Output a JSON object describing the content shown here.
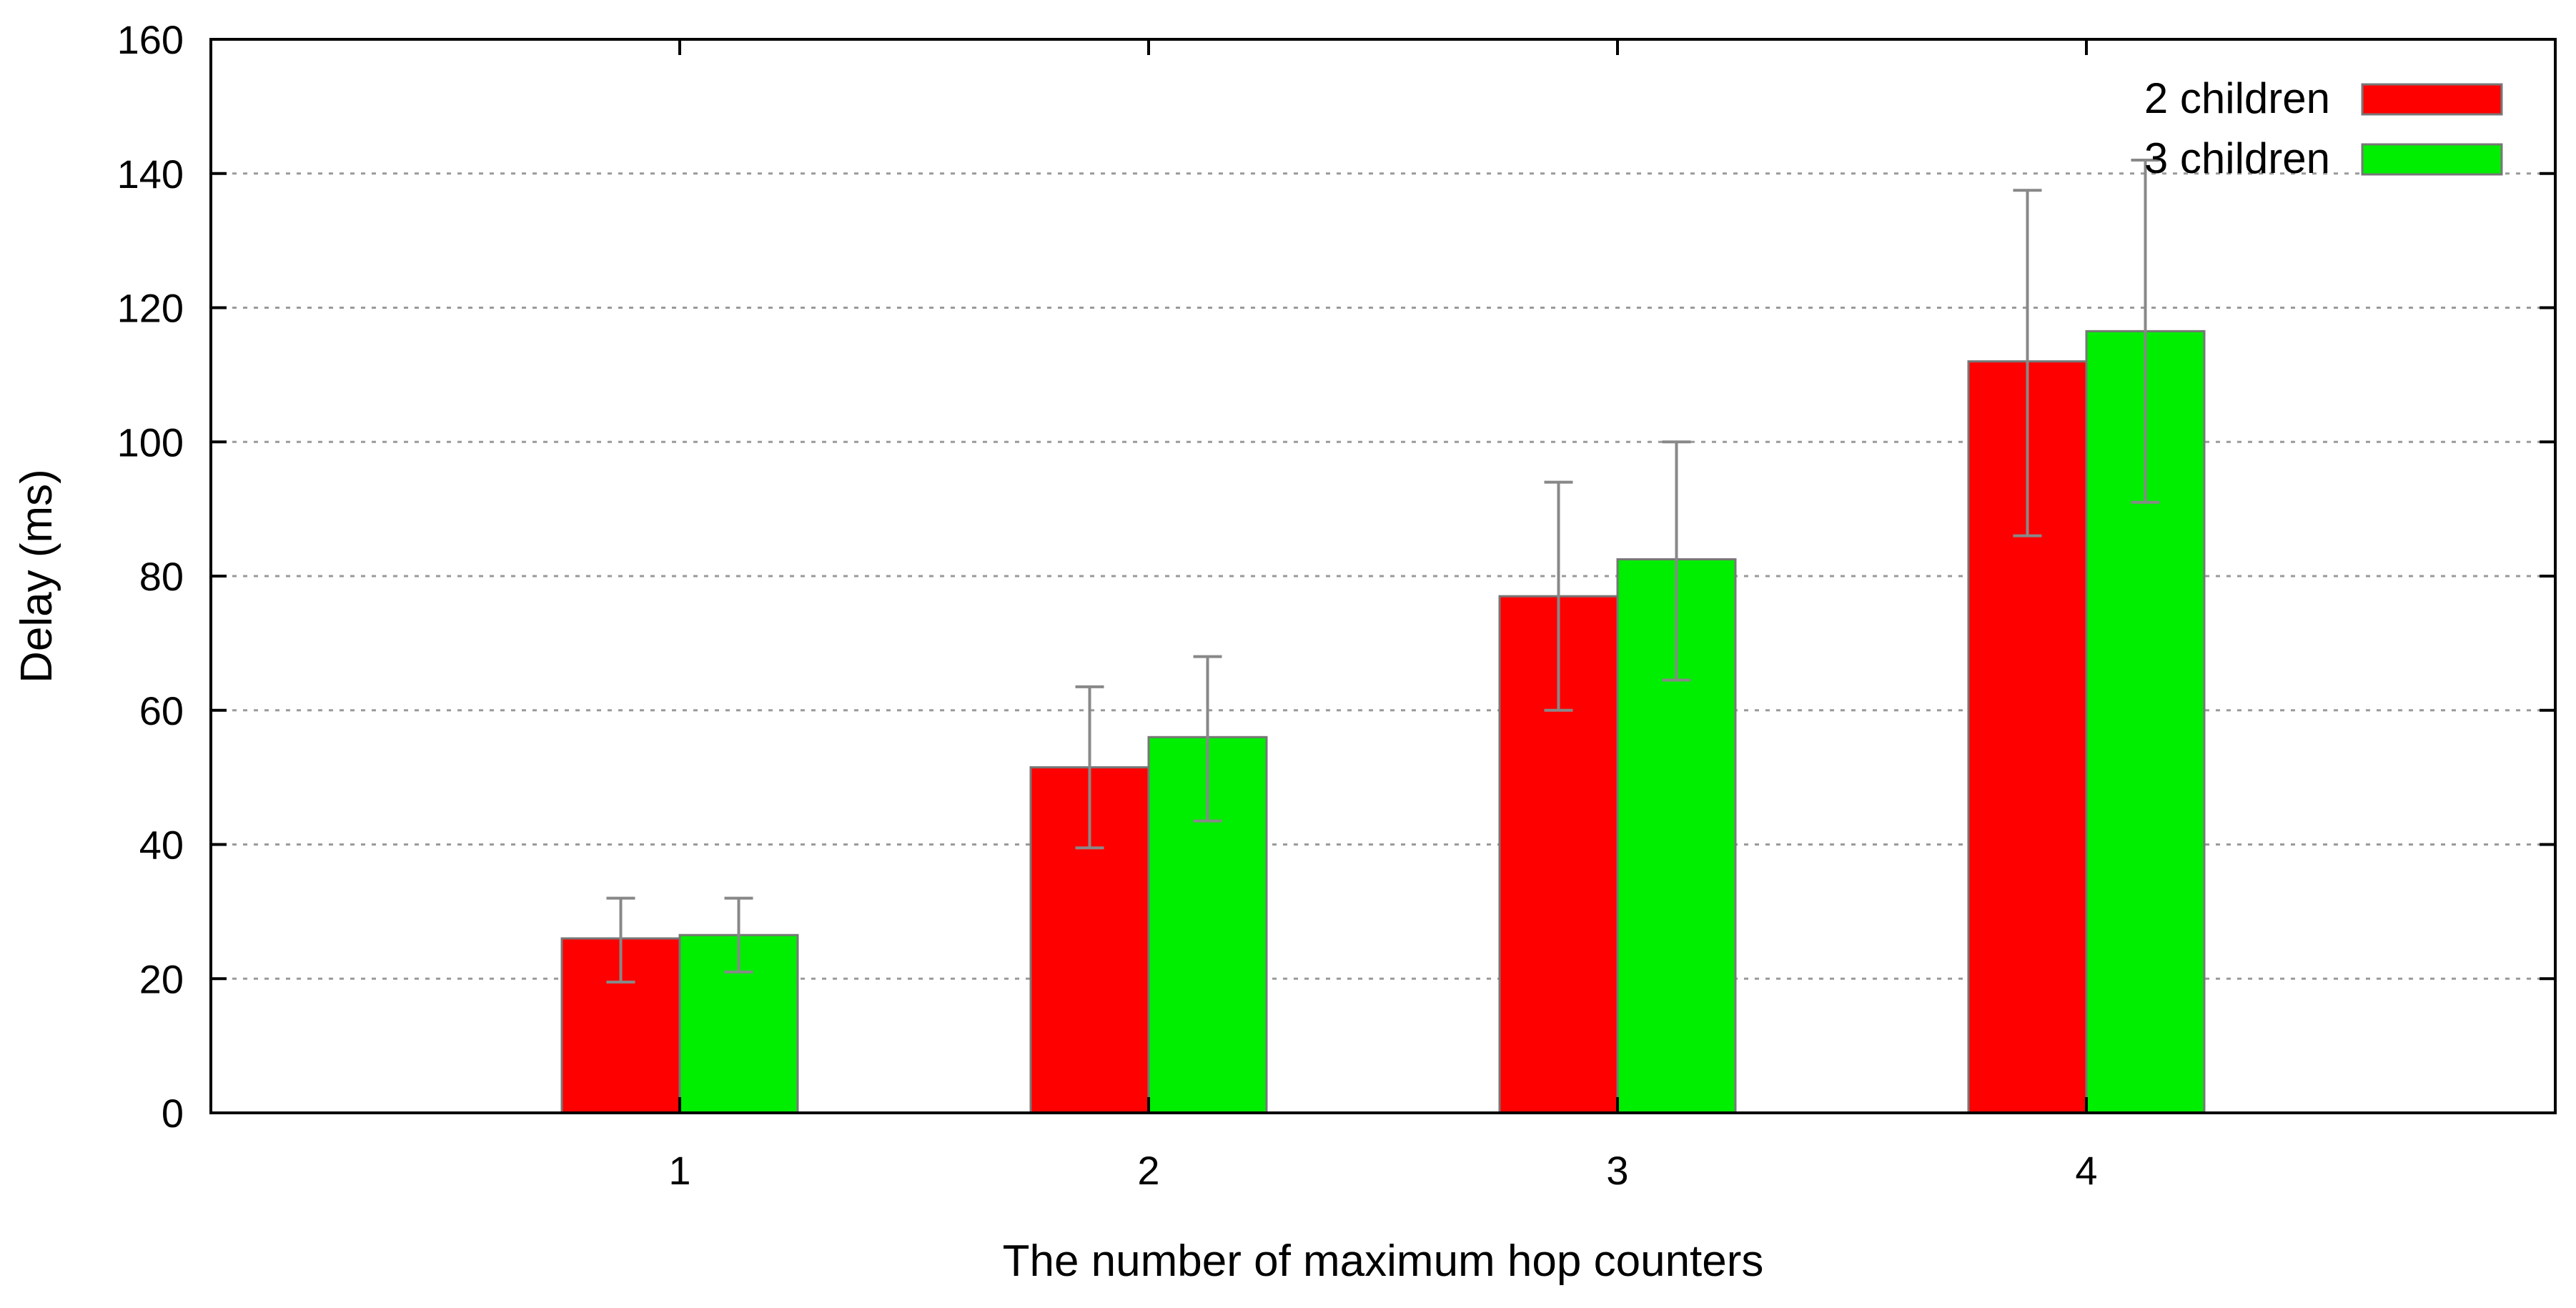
{
  "chart_data": {
    "type": "bar",
    "title": "",
    "xlabel": "The number of maximum hop counters",
    "ylabel": "Delay (ms)",
    "categories": [
      "1",
      "2",
      "3",
      "4"
    ],
    "ylim": [
      0,
      160
    ],
    "yticks": [
      0,
      20,
      40,
      60,
      80,
      100,
      120,
      140,
      160
    ],
    "grid": "horizontal dotted",
    "legend_position": "top-right",
    "error_bar_color": "#888888",
    "series": [
      {
        "name": "2 children",
        "color": "#ff0000",
        "values": [
          26,
          51.5,
          77,
          112
        ],
        "error_low": [
          19.5,
          39.5,
          60,
          86
        ],
        "error_high": [
          32,
          63.5,
          94,
          137.5
        ]
      },
      {
        "name": "3 children",
        "color": "#00ee00",
        "values": [
          26.5,
          56,
          82.5,
          116.5
        ],
        "error_low": [
          21,
          43.5,
          64.5,
          91
        ],
        "error_high": [
          32,
          68,
          100,
          142
        ]
      }
    ]
  }
}
